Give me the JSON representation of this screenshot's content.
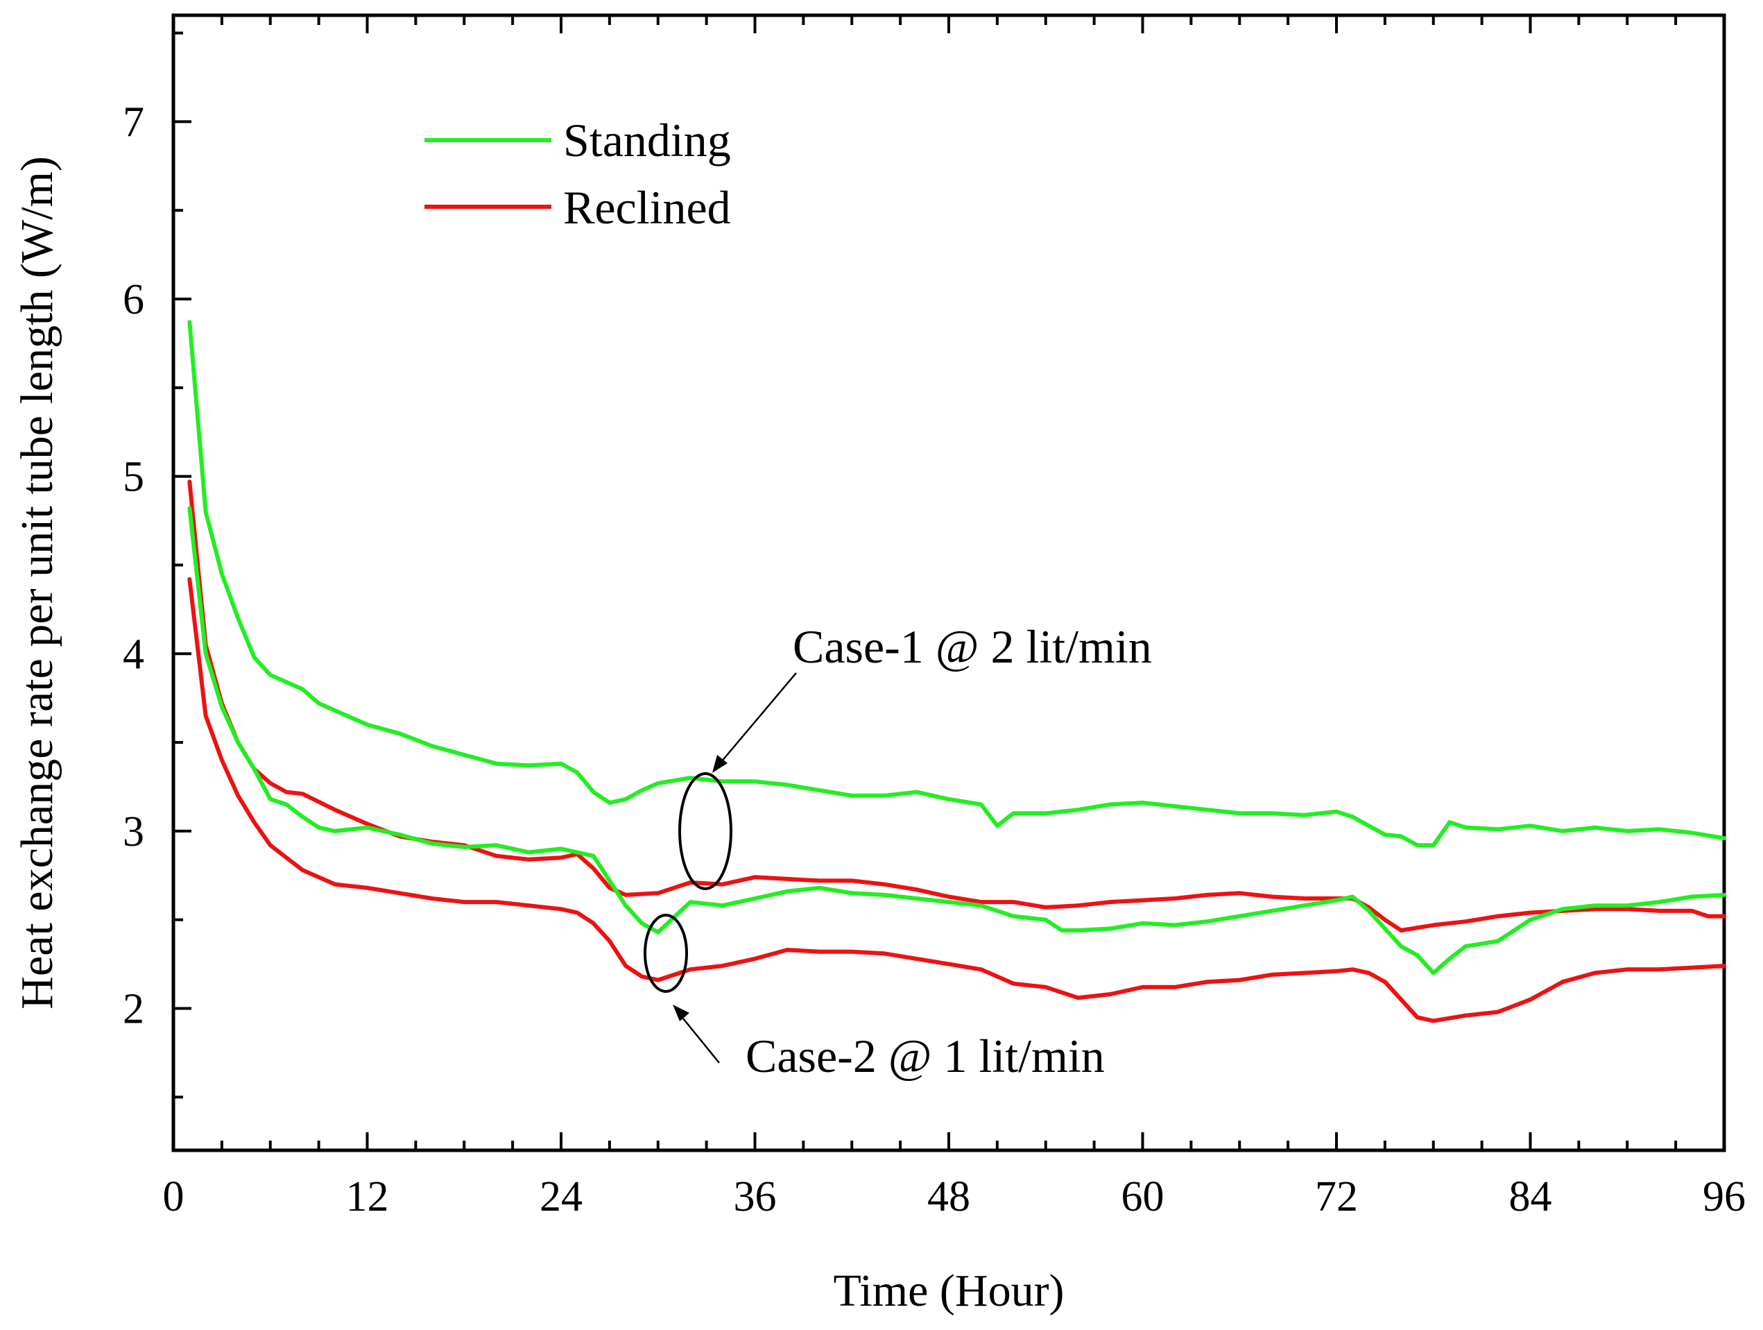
{
  "chart_data": {
    "type": "line",
    "title": "",
    "xlabel": "Time (Hour)",
    "ylabel": "Heat exchange rate per unit tube length (W/m)",
    "xlim": [
      0,
      96
    ],
    "ylim": [
      1.2,
      7.6
    ],
    "xticks": [
      0,
      12,
      24,
      36,
      48,
      60,
      72,
      84,
      96
    ],
    "yticks": [
      2,
      3,
      4,
      5,
      6,
      7
    ],
    "legend": [
      {
        "label": "Standing",
        "color": "#22ee22"
      },
      {
        "label": "Reclined",
        "color": "#ee1111"
      }
    ],
    "legend_position": "top-left",
    "series": [
      {
        "name": "Standing (Case-1 @ 2 lit/min)",
        "color": "#22ee22",
        "x": [
          1,
          2,
          3,
          4,
          5,
          6,
          8,
          9,
          10,
          12,
          14,
          16,
          18,
          20,
          22,
          24,
          25,
          26,
          27,
          28,
          29,
          30,
          32,
          34,
          36,
          38,
          40,
          42,
          44,
          46,
          48,
          50,
          51,
          52,
          54,
          56,
          58,
          60,
          62,
          64,
          66,
          68,
          70,
          72,
          73,
          74,
          75,
          76,
          77,
          78,
          79,
          80,
          82,
          84,
          86,
          88,
          90,
          92,
          94,
          96
        ],
        "values": [
          5.87,
          4.8,
          4.45,
          4.2,
          3.98,
          3.88,
          3.8,
          3.72,
          3.68,
          3.6,
          3.55,
          3.48,
          3.43,
          3.38,
          3.37,
          3.38,
          3.33,
          3.22,
          3.16,
          3.18,
          3.23,
          3.27,
          3.3,
          3.28,
          3.28,
          3.26,
          3.23,
          3.2,
          3.2,
          3.22,
          3.18,
          3.15,
          3.03,
          3.1,
          3.1,
          3.12,
          3.15,
          3.16,
          3.14,
          3.12,
          3.1,
          3.1,
          3.09,
          3.11,
          3.08,
          3.03,
          2.98,
          2.97,
          2.92,
          2.92,
          3.05,
          3.02,
          3.01,
          3.03,
          3.0,
          3.02,
          3.0,
          3.01,
          2.99,
          2.96
        ]
      },
      {
        "name": "Reclined (Case-1 @ 2 lit/min)",
        "color": "#ee1111",
        "x": [
          1,
          2,
          3,
          4,
          5,
          6,
          7,
          8,
          10,
          12,
          14,
          16,
          18,
          20,
          22,
          24,
          25,
          26,
          27,
          28,
          30,
          32,
          34,
          36,
          38,
          40,
          42,
          44,
          46,
          48,
          50,
          52,
          54,
          56,
          58,
          60,
          62,
          64,
          66,
          68,
          70,
          72,
          73,
          74,
          75,
          76,
          78,
          80,
          82,
          84,
          86,
          88,
          90,
          92,
          94,
          95,
          96
        ],
        "values": [
          4.97,
          4.05,
          3.72,
          3.5,
          3.35,
          3.27,
          3.22,
          3.21,
          3.12,
          3.04,
          2.97,
          2.94,
          2.92,
          2.86,
          2.84,
          2.85,
          2.87,
          2.79,
          2.68,
          2.64,
          2.65,
          2.71,
          2.7,
          2.74,
          2.73,
          2.72,
          2.72,
          2.7,
          2.67,
          2.63,
          2.6,
          2.6,
          2.57,
          2.58,
          2.6,
          2.61,
          2.62,
          2.64,
          2.65,
          2.63,
          2.62,
          2.62,
          2.62,
          2.57,
          2.5,
          2.44,
          2.47,
          2.49,
          2.52,
          2.54,
          2.55,
          2.56,
          2.56,
          2.55,
          2.55,
          2.52,
          2.52
        ]
      },
      {
        "name": "Standing (Case-2 @ 1 lit/min)",
        "color": "#22ee22",
        "x": [
          1,
          2,
          3,
          4,
          5,
          6,
          7,
          8,
          9,
          10,
          12,
          14,
          16,
          18,
          20,
          22,
          24,
          25,
          26,
          27,
          28,
          29,
          30,
          32,
          34,
          36,
          38,
          40,
          42,
          44,
          46,
          48,
          50,
          52,
          54,
          55,
          56,
          58,
          60,
          62,
          64,
          66,
          68,
          70,
          72,
          73,
          74,
          75,
          76,
          77,
          78,
          79,
          80,
          82,
          84,
          86,
          88,
          90,
          92,
          94,
          96
        ],
        "values": [
          4.82,
          4.0,
          3.7,
          3.5,
          3.35,
          3.18,
          3.15,
          3.08,
          3.02,
          3.0,
          3.02,
          2.98,
          2.93,
          2.91,
          2.92,
          2.88,
          2.9,
          2.88,
          2.86,
          2.72,
          2.58,
          2.48,
          2.43,
          2.6,
          2.58,
          2.62,
          2.66,
          2.68,
          2.65,
          2.64,
          2.62,
          2.6,
          2.58,
          2.52,
          2.5,
          2.44,
          2.44,
          2.45,
          2.48,
          2.47,
          2.49,
          2.52,
          2.55,
          2.58,
          2.61,
          2.63,
          2.55,
          2.45,
          2.35,
          2.3,
          2.2,
          2.28,
          2.35,
          2.38,
          2.5,
          2.56,
          2.58,
          2.58,
          2.6,
          2.63,
          2.64
        ]
      },
      {
        "name": "Reclined (Case-2 @ 1 lit/min)",
        "color": "#ee1111",
        "x": [
          1,
          2,
          3,
          4,
          5,
          6,
          7,
          8,
          10,
          12,
          14,
          16,
          18,
          20,
          22,
          24,
          25,
          26,
          27,
          28,
          29,
          30,
          32,
          34,
          36,
          38,
          40,
          42,
          44,
          46,
          48,
          50,
          52,
          54,
          56,
          58,
          60,
          62,
          64,
          66,
          68,
          70,
          72,
          73,
          74,
          75,
          76,
          77,
          78,
          80,
          82,
          84,
          86,
          88,
          90,
          92,
          94,
          96
        ],
        "values": [
          4.42,
          3.65,
          3.4,
          3.2,
          3.05,
          2.92,
          2.85,
          2.78,
          2.7,
          2.68,
          2.65,
          2.62,
          2.6,
          2.6,
          2.58,
          2.56,
          2.54,
          2.48,
          2.38,
          2.24,
          2.18,
          2.16,
          2.22,
          2.24,
          2.28,
          2.33,
          2.32,
          2.32,
          2.31,
          2.28,
          2.25,
          2.22,
          2.14,
          2.12,
          2.06,
          2.08,
          2.12,
          2.12,
          2.15,
          2.16,
          2.19,
          2.2,
          2.21,
          2.22,
          2.2,
          2.15,
          2.05,
          1.95,
          1.93,
          1.96,
          1.98,
          2.05,
          2.15,
          2.2,
          2.22,
          2.22,
          2.23,
          2.24
        ]
      }
    ],
    "annotations": [
      {
        "text": "Case-1 @ 2 lit/min",
        "target_x": 33,
        "target_y": 3.0
      },
      {
        "text": "Case-2 @ 1 lit/min",
        "target_x": 30.5,
        "target_y": 2.31
      }
    ]
  }
}
